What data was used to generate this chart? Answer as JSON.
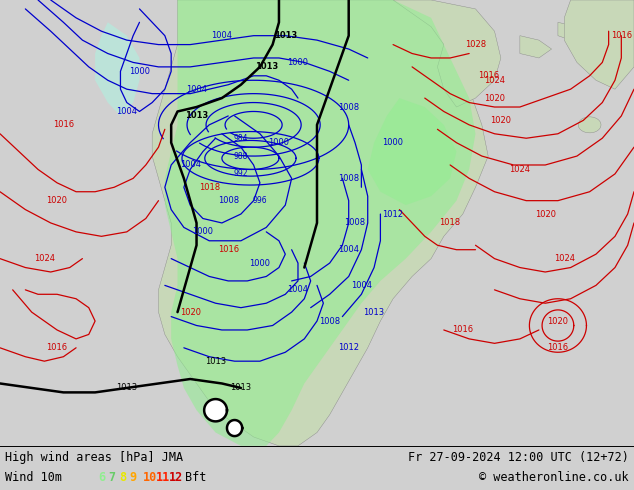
{
  "title_left": "High wind areas [hPa] JMA",
  "title_right": "Fr 27-09-2024 12:00 UTC (12+72)",
  "subtitle_left": "Wind 10m",
  "subtitle_right": "© weatheronline.co.uk",
  "wind_nums": [
    "6",
    "7",
    "8",
    "9",
    "10",
    "11",
    "12"
  ],
  "wind_colors": [
    "#90ee90",
    "#68cc68",
    "#e8e800",
    "#ffa500",
    "#ff6600",
    "#ff2200",
    "#cc0000"
  ],
  "bg_color": "#d0d0d0",
  "ocean_color": "#d8d8d8",
  "land_color": "#c8d8b8",
  "land_edge": "#888888",
  "green_wind_color": "#90ee90",
  "cyan_wind_color": "#b0f0e0",
  "blue_contour": "#0000cc",
  "red_contour": "#cc0000",
  "black_contour": "#000000",
  "figsize": [
    6.34,
    4.9
  ],
  "dpi": 100
}
